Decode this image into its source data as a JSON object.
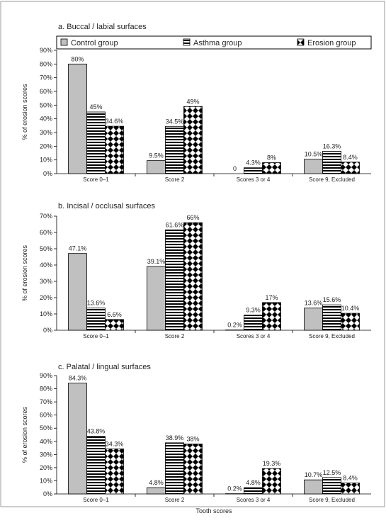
{
  "legend": {
    "items": [
      {
        "label": "Control group",
        "style": "solid"
      },
      {
        "label": "Asthma group",
        "style": "hstripe"
      },
      {
        "label": "Erosion group",
        "style": "checker"
      }
    ]
  },
  "xlabel_bottom": "Tooth scores",
  "colors": {
    "control_fill": "#c0c0c0",
    "border": "#000000",
    "frame": "#9a9a9a",
    "pattern": "#000000"
  },
  "chart_data": [
    {
      "type": "bar",
      "title": "a. Buccal / labial surfaces",
      "ylabel": "% of erosion scores",
      "ylim": [
        0,
        90
      ],
      "yticks": [
        "0%",
        "10%",
        "20%",
        "30%",
        "40%",
        "50%",
        "60%",
        "70%",
        "80%",
        "90%"
      ],
      "categories": [
        "Score 0–1",
        "Score 2",
        "Scores 3 or 4",
        "Score 9, Excluded"
      ],
      "series": [
        {
          "name": "Control group",
          "values": [
            80,
            9.5,
            0,
            10.5
          ],
          "labels": [
            "80%",
            "9.5%",
            "0",
            "10.5%"
          ]
        },
        {
          "name": "Asthma group",
          "values": [
            45,
            34.5,
            4.3,
            16.3
          ],
          "labels": [
            "45%",
            "34.5%",
            "4.3%",
            "16.3%"
          ]
        },
        {
          "name": "Erosion group",
          "values": [
            34.6,
            49,
            8,
            8.4
          ],
          "labels": [
            "34.6%",
            "49%",
            "8%",
            "8.4%"
          ]
        }
      ]
    },
    {
      "type": "bar",
      "title": "b. Incisal / occlusal surfaces",
      "ylabel": "% of erosion scores",
      "ylim": [
        0,
        70
      ],
      "yticks": [
        "0%",
        "10%",
        "20%",
        "30%",
        "40%",
        "50%",
        "60%",
        "70%"
      ],
      "categories": [
        "Score 0–1",
        "Score 2",
        "Scores 3 or 4",
        "Score 9, Excluded"
      ],
      "series": [
        {
          "name": "Control group",
          "values": [
            47.1,
            39.1,
            0.2,
            13.6
          ],
          "labels": [
            "47.1%",
            "39.1%",
            "0.2%",
            "13.6%"
          ]
        },
        {
          "name": "Asthma group",
          "values": [
            13.6,
            61.6,
            9.3,
            15.6
          ],
          "labels": [
            "13.6%",
            "61.6%",
            "9.3%",
            "15.6%"
          ]
        },
        {
          "name": "Erosion group",
          "values": [
            6.6,
            66,
            17,
            10.4
          ],
          "labels": [
            "6.6%",
            "66%",
            "17%",
            "10.4%"
          ]
        }
      ]
    },
    {
      "type": "bar",
      "title": "c. Palatal / lingual surfaces",
      "ylabel": "% of erosion scores",
      "ylim": [
        0,
        90
      ],
      "yticks": [
        "0%",
        "10%",
        "20%",
        "30%",
        "40%",
        "50%",
        "60%",
        "70%",
        "80%",
        "90%"
      ],
      "categories": [
        "Score 0–1",
        "Score 2",
        "Scores 3 or 4",
        "Score 9, Excluded"
      ],
      "series": [
        {
          "name": "Control group",
          "values": [
            84.3,
            4.8,
            0.2,
            10.7
          ],
          "labels": [
            "84.3%",
            "4.8%",
            "0.2%",
            "10.7%"
          ]
        },
        {
          "name": "Asthma group",
          "values": [
            43.8,
            38.9,
            4.8,
            12.5
          ],
          "labels": [
            "43.8%",
            "38.9%",
            "4.8%",
            "12.5%"
          ]
        },
        {
          "name": "Erosion group",
          "values": [
            34.3,
            38,
            19.3,
            8.4
          ],
          "labels": [
            "34.3%",
            "38%",
            "19.3%",
            "8.4%"
          ]
        }
      ]
    }
  ]
}
